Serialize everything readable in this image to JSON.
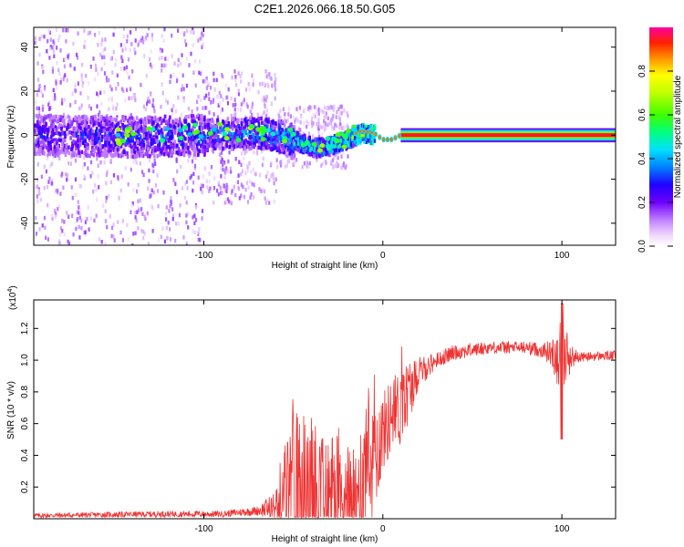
{
  "title": "C2E1.2026.066.18.50.G05",
  "chart_data": [
    {
      "type": "heatmap",
      "xlabel": "Height of straight line (km)",
      "ylabel": "Frequency (Hz)",
      "xlim": [
        -195,
        130
      ],
      "ylim": [
        -50,
        49
      ],
      "xticks": [
        -100,
        0,
        100
      ],
      "yticks": [
        -40,
        -20,
        0,
        20,
        40
      ],
      "colorbar": {
        "label": "Normalized spectral amplitude",
        "range": [
          0,
          1
        ],
        "ticks": [
          "0.0",
          "0.2",
          "0.4",
          "0.6",
          "0.8"
        ],
        "tick_values": [
          0,
          0.2,
          0.4,
          0.6,
          0.8
        ]
      },
      "description_values": {
        "centerline_frequency_hz": [
          [
            -195,
            1
          ],
          [
            -140,
            0
          ],
          [
            -100,
            1
          ],
          [
            -70,
            2
          ],
          [
            -55,
            0
          ],
          [
            -45,
            -3
          ],
          [
            -38,
            -5
          ],
          [
            -30,
            -4
          ],
          [
            -20,
            -1
          ],
          [
            -12,
            2
          ],
          [
            -5,
            1
          ],
          [
            0,
            -2
          ],
          [
            5,
            -2
          ],
          [
            10,
            0
          ],
          [
            130,
            0
          ]
        ],
        "peak_amplitude_by_height": [
          [
            -195,
            0.3
          ],
          [
            -150,
            0.35
          ],
          [
            -100,
            0.4
          ],
          [
            -70,
            0.45
          ],
          [
            -50,
            0.5
          ],
          [
            -30,
            0.55
          ],
          [
            -15,
            0.7
          ],
          [
            -5,
            0.85
          ],
          [
            0,
            0.6
          ],
          [
            10,
            0.95
          ],
          [
            130,
            0.95
          ]
        ]
      }
    },
    {
      "type": "line",
      "xlabel": "Height of straight line (km)",
      "ylabel": "SNR (10 * v/v)",
      "multiplier": "(x10",
      "multiplier_exp": "4",
      "multiplier_close": ")",
      "xlim": [
        -195,
        130
      ],
      "ylim": [
        0,
        1.38
      ],
      "xticks": [
        -100,
        0,
        100
      ],
      "yticks": [
        0.2,
        0.4,
        0.6,
        0.8,
        1.0,
        1.2
      ],
      "color": "#ee3333",
      "envelope": {
        "x": [
          -195,
          -120,
          -90,
          -70,
          -60,
          -55,
          -50,
          -45,
          -40,
          -35,
          -30,
          -25,
          -20,
          -15,
          -10,
          -5,
          0,
          5,
          10,
          15,
          20,
          30,
          40,
          60,
          80,
          90,
          95,
          100,
          105,
          110,
          130
        ],
        "base": [
          0.02,
          0.03,
          0.03,
          0.05,
          0.08,
          0.12,
          0.18,
          0.2,
          0.15,
          0.1,
          0.15,
          0.2,
          0.1,
          0.15,
          0.25,
          0.4,
          0.55,
          0.65,
          0.7,
          0.82,
          0.92,
          1.0,
          1.05,
          1.08,
          1.08,
          1.06,
          1.04,
          1.03,
          1.02,
          1.02,
          1.03
        ],
        "amp": [
          0.015,
          0.02,
          0.02,
          0.03,
          0.1,
          0.35,
          0.5,
          0.5,
          0.55,
          0.4,
          0.4,
          0.45,
          0.3,
          0.4,
          0.45,
          0.4,
          0.25,
          0.25,
          0.25,
          0.2,
          0.1,
          0.05,
          0.05,
          0.04,
          0.04,
          0.05,
          0.1,
          0.3,
          0.08,
          0.03,
          0.03
        ]
      },
      "annotations": {
        "peak_near_100": 1.36,
        "dip_near_100": 0.5
      }
    }
  ]
}
